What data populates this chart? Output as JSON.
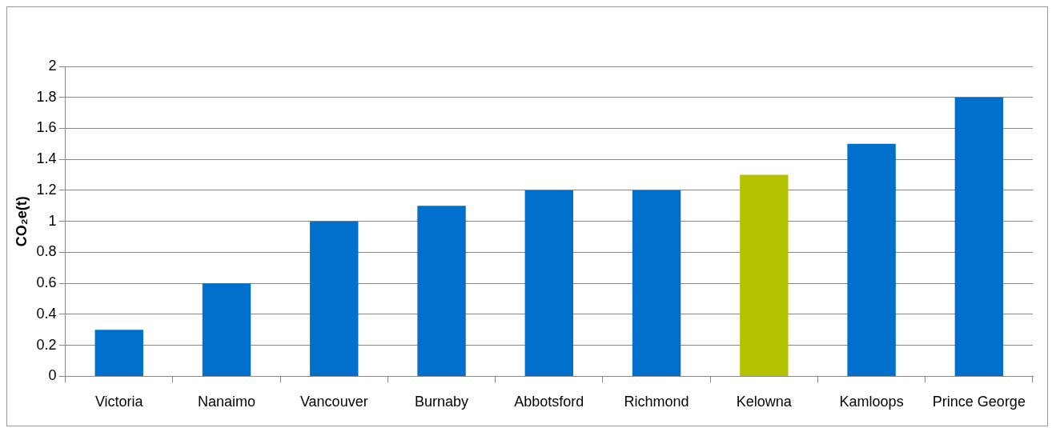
{
  "chart_data": {
    "type": "bar",
    "ylabel": "CO₂e(t)",
    "categories": [
      "Victoria",
      "Nanaimo",
      "Vancouver",
      "Burnaby",
      "Abbotsford",
      "Richmond",
      "Kelowna",
      "Kamloops",
      "Prince George"
    ],
    "values": [
      0.3,
      0.6,
      1.0,
      1.1,
      1.2,
      1.2,
      1.3,
      1.5,
      1.8
    ],
    "colors": [
      "#0070cc",
      "#0070cc",
      "#0070cc",
      "#0070cc",
      "#0070cc",
      "#0070cc",
      "#b5c200",
      "#0070cc",
      "#0070cc"
    ],
    "ylim": [
      0,
      2
    ],
    "yticks": [
      0,
      0.2,
      0.4,
      0.6,
      0.8,
      1,
      1.2,
      1.4,
      1.6,
      1.8,
      2
    ],
    "grid": "y",
    "legend": false
  }
}
